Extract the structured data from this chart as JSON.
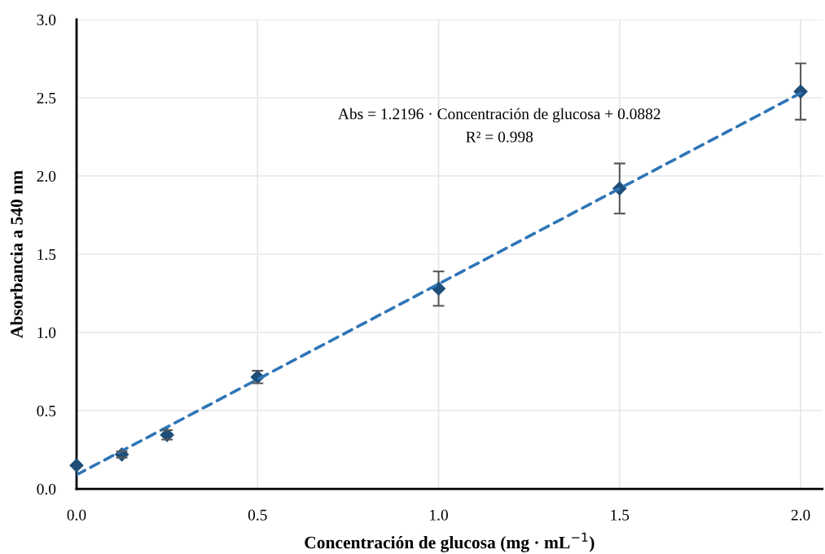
{
  "chart_data": {
    "type": "scatter",
    "xlabel": "Concentración de glucosa (mg · mL$^{−1}$)",
    "ylabel": "Absorbancia a 540 nm",
    "annotations": [
      "Abs = 1.2196 · Concentración de glucosa + 0.0882",
      "R² = 0.998"
    ],
    "xlim": [
      0,
      2.06
    ],
    "xticks": [
      {
        "value": 0,
        "label": "0.0"
      },
      0.5,
      {
        "value": 1,
        "label": "1.0"
      },
      1.5,
      {
        "value": 2,
        "label": "2.0"
      }
    ],
    "ylim": [
      0,
      3.0
    ],
    "yticks": [
      {
        "value": 0,
        "label": "0.0"
      },
      0.5,
      {
        "value": 1,
        "label": "1.0"
      },
      1.5,
      {
        "value": 2,
        "label": "2.0"
      },
      2.5,
      {
        "value": 3,
        "label": "3.0"
      }
    ],
    "grid": true,
    "legend": false,
    "series": [
      {
        "color": "#1f4e79",
        "marker": "diamond",
        "x": [
          0,
          0.125,
          0.25,
          0.5,
          1.0,
          1.5,
          2.0
        ],
        "values": [
          0.15,
          0.22,
          0.345,
          0.715,
          1.28,
          1.92,
          2.54
        ],
        "errors": [
          null,
          0.02,
          0.03,
          0.04,
          0.11,
          0.16,
          0.18
        ]
      },
      {
        "type": "line",
        "color": "#2e75b6",
        "line_style": "dashed",
        "x": [
          0,
          2.0
        ],
        "values": [
          0.09,
          2.53
        ]
      }
    ]
  }
}
